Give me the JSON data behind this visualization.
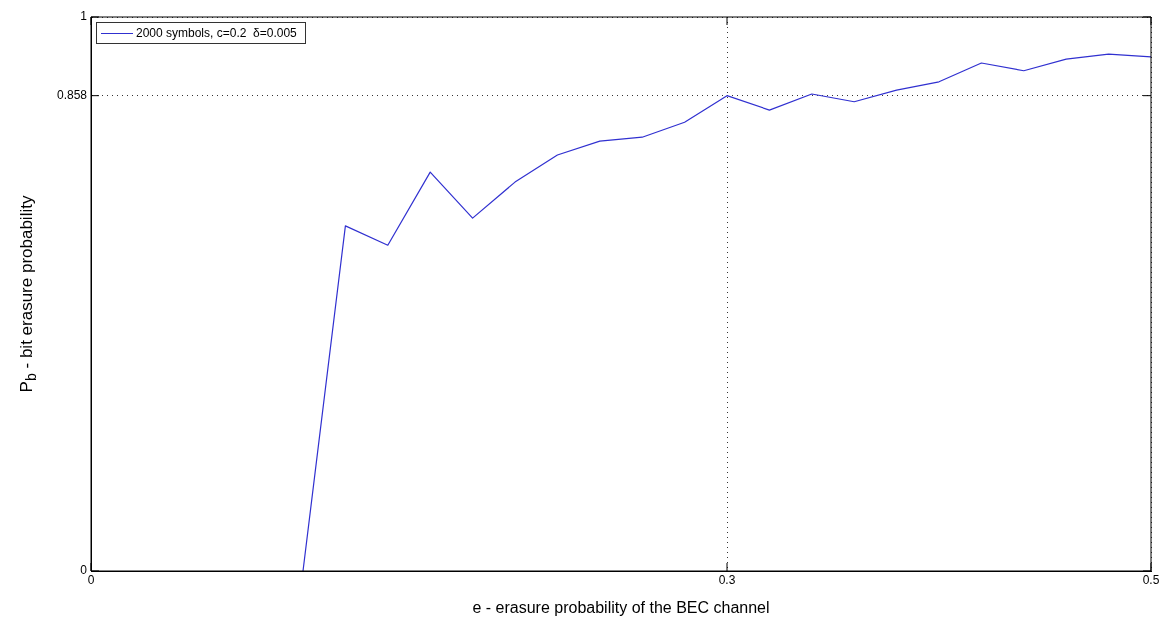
{
  "chart_data": {
    "type": "line",
    "xlabel": "e - erasure probability of the BEC channel",
    "ylabel": "P$_{b}$ - bit erasure probability",
    "x": [
      0.1,
      0.12,
      0.14,
      0.16,
      0.18,
      0.2,
      0.22,
      0.24,
      0.26,
      0.28,
      0.3,
      0.32,
      0.34,
      0.36,
      0.38,
      0.4,
      0.42,
      0.44,
      0.46,
      0.48,
      0.5
    ],
    "series": [
      {
        "name": "2000 symbols, c=0.2  δ=0.005",
        "color": "#3030d0",
        "values": [
          0,
          0.623,
          0.588,
          0.72,
          0.637,
          0.702,
          0.751,
          0.776,
          0.783,
          0.81,
          0.858,
          0.832,
          0.861,
          0.847,
          0.868,
          0.883,
          0.917,
          0.903,
          0.924,
          0.933,
          0.928
        ]
      }
    ],
    "xlim": [
      0,
      0.5
    ],
    "xticks": [
      0,
      0.3,
      0.5
    ],
    "ylim": [
      0,
      1
    ],
    "yticks": [
      0,
      0.858,
      1
    ],
    "grid": true,
    "legend": "top left",
    "marker": "none",
    "line_style": "solid"
  }
}
